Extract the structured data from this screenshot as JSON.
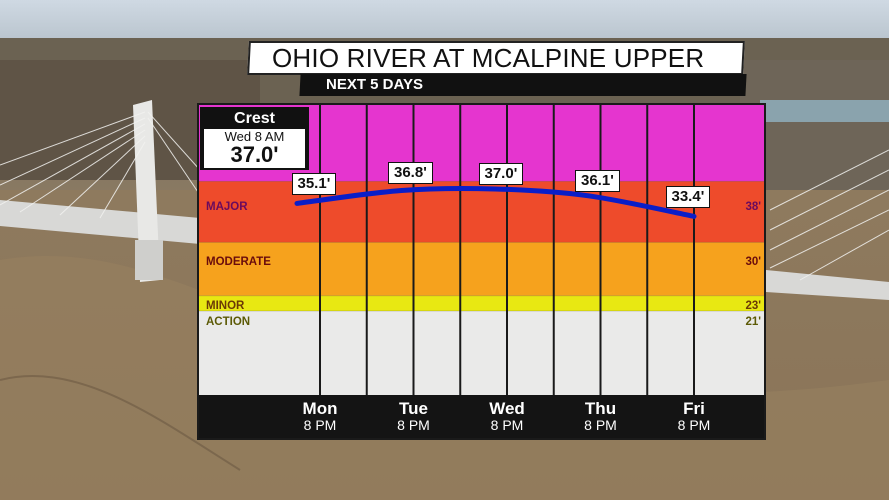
{
  "title": "OHIO RIVER AT MCALPINE UPPER",
  "subtitle": "NEXT 5 DAYS",
  "crest": {
    "label": "Crest",
    "time": "Wed 8 AM",
    "value": "37.0'"
  },
  "colors": {
    "major": "#e535cf",
    "moderate": "#ee4b2b",
    "minor": "#f6a21d",
    "action": "#e8e812",
    "normal": "#ebebeb",
    "line": "#0a1ec8",
    "footer": "#141414"
  },
  "stages": [
    {
      "name": "MAJOR",
      "value_label": "38'",
      "value": 38
    },
    {
      "name": "MODERATE",
      "value_label": "30'",
      "value": 30
    },
    {
      "name": "MINOR",
      "value_label": "23'",
      "value": 23
    },
    {
      "name": "ACTION",
      "value_label": "21'",
      "value": 21
    }
  ],
  "chart_data": {
    "type": "line",
    "title": "OHIO RIVER AT MCALPINE UPPER",
    "subtitle": "NEXT 5 DAYS",
    "categories": [
      "Mon",
      "Tue",
      "Wed",
      "Thu",
      "Fri"
    ],
    "time_labels": [
      "8 PM",
      "8 PM",
      "8 PM",
      "8 PM",
      "8 PM"
    ],
    "series": [
      {
        "values": [
          35.1,
          36.8,
          37.0,
          36.1,
          33.4
        ],
        "labels": [
          "35.1'",
          "36.8'",
          "37.0'",
          "36.1'",
          "33.4'"
        ]
      }
    ],
    "ylim": [
      10,
      48
    ],
    "thresholds": {
      "major": 38,
      "moderate": 30,
      "minor": 23,
      "action": 21
    },
    "grid": true,
    "legend": "none"
  }
}
